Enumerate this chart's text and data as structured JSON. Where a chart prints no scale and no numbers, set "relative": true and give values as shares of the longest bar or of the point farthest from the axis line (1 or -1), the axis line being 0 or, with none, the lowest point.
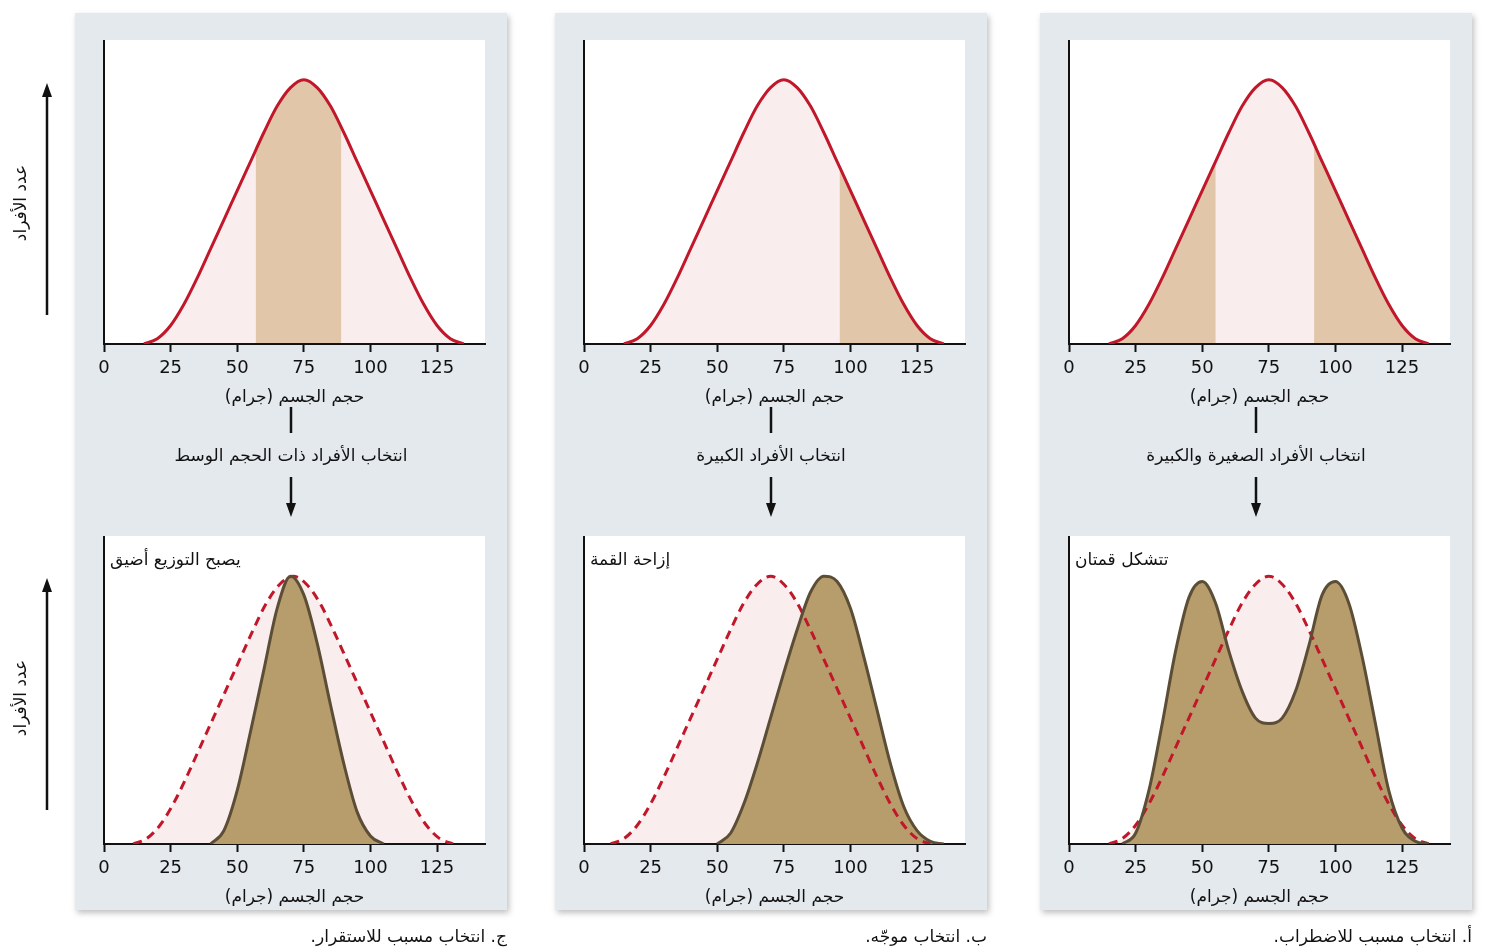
{
  "chart_data": [
    {
      "type": "area",
      "relative": true,
      "xlim": [
        0,
        143
      ],
      "xticks": [
        0,
        25,
        50,
        75,
        100,
        125
      ],
      "xlabel": "حجم الجسم (جرام)",
      "annotations": [
        "انتخاب الأفراد الصغيرة والكبيرة"
      ],
      "bands": [
        {
          "axis": "x",
          "from": 0,
          "to": 55,
          "color": "#e5d5b5"
        },
        {
          "axis": "x",
          "from": 92,
          "to": 143,
          "color": "#e5d5b5"
        }
      ],
      "series": [
        {
          "color": "#c0182a",
          "x": [
            15,
            20,
            25,
            30,
            35,
            40,
            45,
            50,
            55,
            60,
            65,
            70,
            75,
            80,
            85,
            90,
            95,
            100,
            105,
            110,
            115,
            120,
            125,
            130,
            135
          ],
          "values": [
            0,
            0.02,
            0.07,
            0.15,
            0.25,
            0.36,
            0.47,
            0.58,
            0.69,
            0.8,
            0.9,
            0.97,
            1,
            0.97,
            0.9,
            0.8,
            0.69,
            0.58,
            0.47,
            0.36,
            0.25,
            0.15,
            0.07,
            0.02,
            0
          ]
        }
      ]
    },
    {
      "type": "area",
      "relative": true,
      "xlim": [
        0,
        143
      ],
      "xticks": [
        0,
        25,
        50,
        75,
        100,
        125
      ],
      "xlabel": "حجم الجسم (جرام)",
      "annotations": [
        "تتشكل قمتان",
        "أ. انتخاب مسبب للاضطراب."
      ],
      "series": [
        {
          "color": "#c0182a",
          "line_style": "dashed",
          "x": [
            15,
            20,
            25,
            30,
            35,
            40,
            45,
            50,
            55,
            60,
            65,
            70,
            75,
            80,
            85,
            90,
            95,
            100,
            105,
            110,
            115,
            120,
            125,
            130,
            135
          ],
          "values": [
            0,
            0.02,
            0.07,
            0.15,
            0.25,
            0.36,
            0.47,
            0.58,
            0.69,
            0.8,
            0.9,
            0.97,
            1,
            0.97,
            0.9,
            0.8,
            0.69,
            0.58,
            0.47,
            0.36,
            0.25,
            0.15,
            0.07,
            0.02,
            0
          ]
        },
        {
          "color": "#b89d6c",
          "x": [
            20,
            25,
            30,
            35,
            40,
            45,
            50,
            55,
            60,
            65,
            70,
            75,
            80,
            85,
            90,
            95,
            100,
            105,
            110,
            115,
            120,
            125,
            130,
            135
          ],
          "values": [
            0,
            0.04,
            0.2,
            0.45,
            0.72,
            0.92,
            0.98,
            0.9,
            0.72,
            0.57,
            0.47,
            0.45,
            0.47,
            0.57,
            0.74,
            0.93,
            0.98,
            0.9,
            0.7,
            0.45,
            0.2,
            0.06,
            0.01,
            0
          ]
        }
      ]
    },
    {
      "type": "area",
      "relative": true,
      "xlim": [
        0,
        143
      ],
      "xticks": [
        0,
        25,
        50,
        75,
        100,
        125
      ],
      "xlabel": "حجم الجسم (جرام)",
      "annotations": [
        "انتخاب الأفراد الكبيرة"
      ],
      "bands": [
        {
          "axis": "x",
          "from": 96,
          "to": 143,
          "color": "#e5d5b5"
        }
      ],
      "series": [
        {
          "color": "#c0182a",
          "x": [
            15,
            20,
            25,
            30,
            35,
            40,
            45,
            50,
            55,
            60,
            65,
            70,
            75,
            80,
            85,
            90,
            95,
            100,
            105,
            110,
            115,
            120,
            125,
            130,
            135
          ],
          "values": [
            0,
            0.02,
            0.07,
            0.15,
            0.25,
            0.36,
            0.47,
            0.58,
            0.69,
            0.8,
            0.9,
            0.97,
            1,
            0.97,
            0.9,
            0.8,
            0.69,
            0.58,
            0.47,
            0.36,
            0.25,
            0.15,
            0.07,
            0.02,
            0
          ]
        }
      ]
    },
    {
      "type": "area",
      "relative": true,
      "xlim": [
        0,
        143
      ],
      "xticks": [
        0,
        25,
        50,
        75,
        100,
        125
      ],
      "xlabel": "حجم الجسم (جرام)",
      "annotations": [
        "إزاحة القمة",
        "ب. انتخاب موجّه."
      ],
      "series": [
        {
          "color": "#c0182a",
          "line_style": "dashed",
          "x": [
            10,
            15,
            20,
            25,
            30,
            35,
            40,
            45,
            50,
            55,
            60,
            65,
            70,
            75,
            80,
            85,
            90,
            95,
            100,
            105,
            110,
            115,
            120,
            125,
            130
          ],
          "values": [
            0,
            0.02,
            0.07,
            0.15,
            0.25,
            0.36,
            0.47,
            0.58,
            0.69,
            0.8,
            0.9,
            0.97,
            1,
            0.97,
            0.9,
            0.8,
            0.69,
            0.58,
            0.47,
            0.36,
            0.25,
            0.15,
            0.07,
            0.02,
            0
          ]
        },
        {
          "color": "#b89d6c",
          "x": [
            50,
            55,
            60,
            65,
            70,
            75,
            80,
            85,
            90,
            95,
            100,
            105,
            110,
            115,
            120,
            125,
            130,
            135
          ],
          "values": [
            0,
            0.04,
            0.15,
            0.3,
            0.47,
            0.64,
            0.8,
            0.94,
            1,
            0.98,
            0.88,
            0.7,
            0.5,
            0.3,
            0.14,
            0.05,
            0.01,
            0
          ]
        }
      ]
    },
    {
      "type": "area",
      "relative": true,
      "xlim": [
        0,
        143
      ],
      "xticks": [
        0,
        25,
        50,
        75,
        100,
        125
      ],
      "xlabel": "حجم الجسم (جرام)",
      "ylabel": "عدد الأفراد",
      "annotations": [
        "انتخاب الأفراد ذات الحجم الوسط"
      ],
      "bands": [
        {
          "axis": "x",
          "from": 57,
          "to": 89,
          "color": "#e5d5b5"
        }
      ],
      "series": [
        {
          "color": "#c0182a",
          "x": [
            15,
            20,
            25,
            30,
            35,
            40,
            45,
            50,
            55,
            60,
            65,
            70,
            75,
            80,
            85,
            90,
            95,
            100,
            105,
            110,
            115,
            120,
            125,
            130,
            135
          ],
          "values": [
            0,
            0.02,
            0.07,
            0.15,
            0.25,
            0.36,
            0.47,
            0.58,
            0.69,
            0.8,
            0.9,
            0.97,
            1,
            0.97,
            0.9,
            0.8,
            0.69,
            0.58,
            0.47,
            0.36,
            0.25,
            0.15,
            0.07,
            0.02,
            0
          ]
        }
      ]
    },
    {
      "type": "area",
      "relative": true,
      "xlim": [
        0,
        143
      ],
      "xticks": [
        0,
        25,
        50,
        75,
        100,
        125
      ],
      "xlabel": "حجم الجسم (جرام)",
      "ylabel": "عدد الأفراد",
      "annotations": [
        "يصبح التوزيع أضيق",
        "ج. انتخاب مسبب للاستقرار."
      ],
      "series": [
        {
          "color": "#c0182a",
          "line_style": "dashed",
          "x": [
            11,
            16,
            21,
            26,
            31,
            36,
            41,
            46,
            51,
            56,
            61,
            66,
            71,
            76,
            81,
            86,
            91,
            96,
            101,
            106,
            111,
            116,
            121,
            126,
            131
          ],
          "values": [
            0,
            0.02,
            0.07,
            0.15,
            0.25,
            0.36,
            0.47,
            0.58,
            0.69,
            0.8,
            0.9,
            0.97,
            1,
            0.97,
            0.9,
            0.8,
            0.69,
            0.58,
            0.47,
            0.36,
            0.25,
            0.15,
            0.07,
            0.02,
            0
          ]
        },
        {
          "color": "#b89d6c",
          "x": [
            40,
            45,
            50,
            55,
            60,
            65,
            70,
            75,
            80,
            85,
            90,
            95,
            100,
            105
          ],
          "values": [
            0,
            0.05,
            0.2,
            0.42,
            0.65,
            0.88,
            1,
            0.93,
            0.75,
            0.52,
            0.3,
            0.12,
            0.03,
            0
          ]
        }
      ]
    }
  ]
}
